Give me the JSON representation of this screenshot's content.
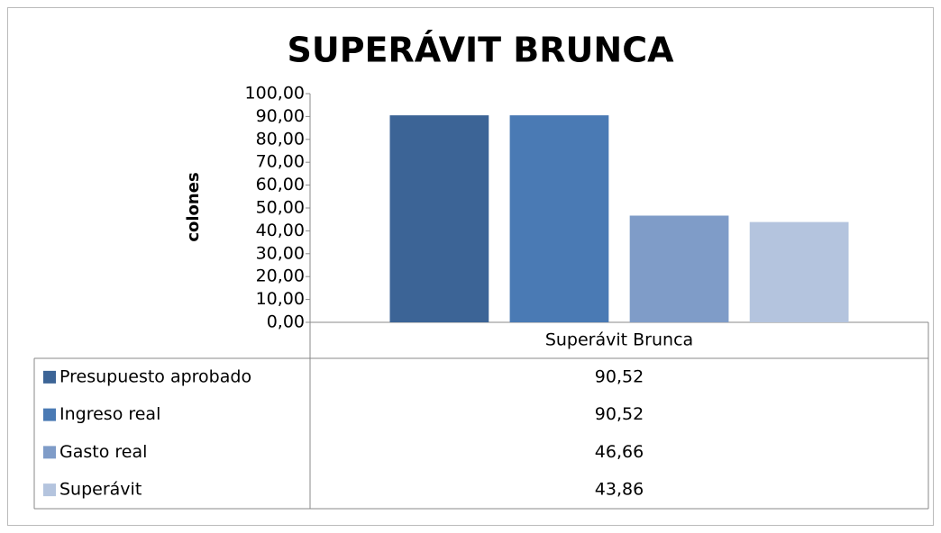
{
  "chart_data": {
    "type": "bar",
    "title": "SUPERÁVIT BRUNCA",
    "y_label": "colones",
    "categories": [
      "Superávit Brunca"
    ],
    "series": [
      {
        "name": "Presupuesto  aprobado",
        "color": "#3c6496",
        "values": [
          90.52
        ],
        "value_labels": [
          "90,52"
        ]
      },
      {
        "name": "Ingreso real",
        "color": "#4a7ab4",
        "values": [
          90.52
        ],
        "value_labels": [
          "90,52"
        ]
      },
      {
        "name": "Gasto real",
        "color": "#7f9cc8",
        "values": [
          46.66
        ],
        "value_labels": [
          "46,66"
        ]
      },
      {
        "name": "Superávit",
        "color": "#b4c4de",
        "values": [
          43.86
        ],
        "value_labels": [
          "43,86"
        ]
      }
    ],
    "ylim": [
      0,
      100
    ],
    "yticks": [
      {
        "value": 0,
        "label": "0,00"
      },
      {
        "value": 10,
        "label": "10,00"
      },
      {
        "value": 20,
        "label": "20,00"
      },
      {
        "value": 30,
        "label": "30,00"
      },
      {
        "value": 40,
        "label": "40,00"
      },
      {
        "value": 50,
        "label": "50,00"
      },
      {
        "value": 60,
        "label": "60,00"
      },
      {
        "value": 70,
        "label": "70,00"
      },
      {
        "value": 80,
        "label": "80,00"
      },
      {
        "value": 90,
        "label": "90,00"
      },
      {
        "value": 100,
        "label": "100,00"
      }
    ],
    "grid": false,
    "legend": "data-table"
  }
}
